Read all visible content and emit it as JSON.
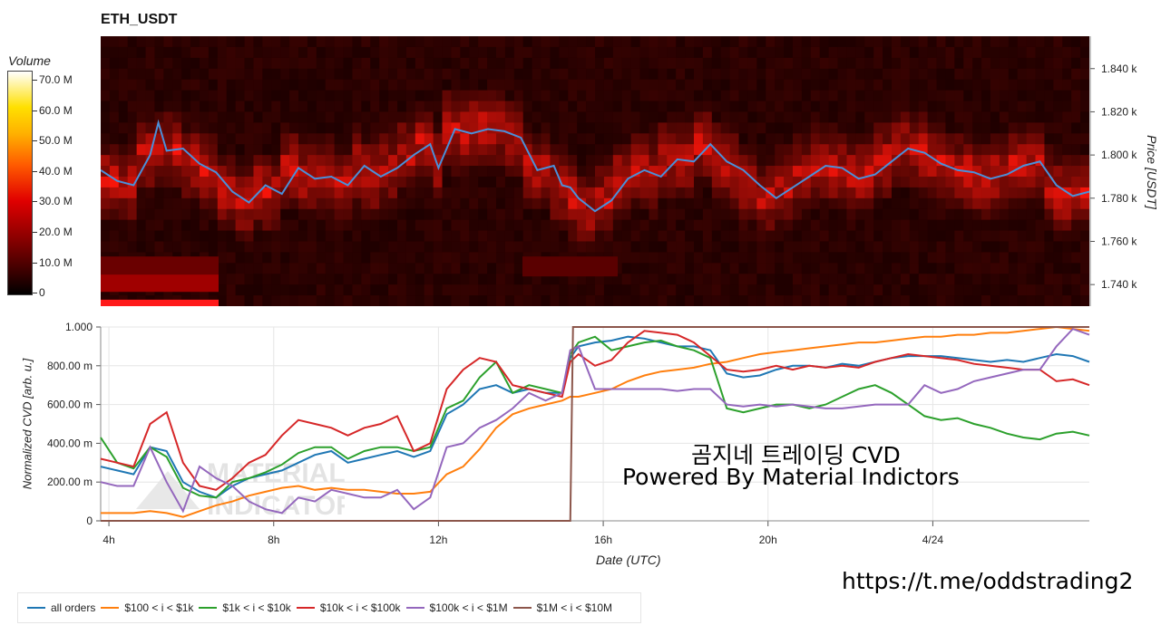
{
  "title": "ETH_USDT",
  "colorbar": {
    "title": "Volume",
    "labels": [
      "70.0 M",
      "60.0 M",
      "50.0 M",
      "40.0 M",
      "30.0 M",
      "20.0 M",
      "10.0 M",
      "0"
    ]
  },
  "overlay_text": {
    "line1": "곰지네 트레이딩 CVD",
    "line2": "Powered By Material Indictors"
  },
  "url": "https://t.me/oddstrading2",
  "watermark": {
    "line1": "MATERIAL",
    "line2": "INDICATORS"
  },
  "chart_data": [
    {
      "type": "heatmap",
      "title": "ETH_USDT",
      "ylabel": "Price [USDT]",
      "ylim": [
        1.73,
        1.855
      ],
      "yticks": [
        "1.740 k",
        "1.760 k",
        "1.780 k",
        "1.800 k",
        "1.820 k",
        "1.840 k"
      ],
      "ytick_values": [
        1.74,
        1.76,
        1.78,
        1.8,
        1.82,
        1.84
      ],
      "colorbar_label": "Volume",
      "colorbar_range": [
        0,
        75
      ],
      "price_series": {
        "name": "",
        "x": [
          3.8,
          4.2,
          4.6,
          5.0,
          5.2,
          5.4,
          5.8,
          6.2,
          6.6,
          7.0,
          7.4,
          7.8,
          8.2,
          8.6,
          9.0,
          9.4,
          9.8,
          10.2,
          10.6,
          11.0,
          11.4,
          11.8,
          12.0,
          12.4,
          12.8,
          13.2,
          13.6,
          14.0,
          14.4,
          14.8,
          15.0,
          15.2,
          15.4,
          15.8,
          16.2,
          16.6,
          17.0,
          17.4,
          17.8,
          18.2,
          18.6,
          19.0,
          19.4,
          19.8,
          20.2,
          20.6,
          21.0,
          21.4,
          21.8,
          22.2,
          22.6,
          23.0,
          23.4,
          23.8,
          24.2,
          24.6,
          25.0,
          25.4,
          25.8,
          26.2,
          26.6,
          27.0,
          27.4,
          27.8
        ],
        "y": [
          1.793,
          1.788,
          1.786,
          1.8,
          1.815,
          1.802,
          1.803,
          1.796,
          1.792,
          1.783,
          1.778,
          1.786,
          1.782,
          1.794,
          1.789,
          1.79,
          1.786,
          1.795,
          1.79,
          1.794,
          1.8,
          1.805,
          1.794,
          1.812,
          1.81,
          1.812,
          1.811,
          1.808,
          1.793,
          1.795,
          1.786,
          1.785,
          1.78,
          1.774,
          1.779,
          1.789,
          1.793,
          1.79,
          1.798,
          1.797,
          1.805,
          1.797,
          1.793,
          1.786,
          1.78,
          1.785,
          1.79,
          1.795,
          1.794,
          1.789,
          1.791,
          1.797,
          1.803,
          1.801,
          1.796,
          1.793,
          1.792,
          1.789,
          1.791,
          1.795,
          1.797,
          1.786,
          1.781,
          1.783
        ]
      }
    },
    {
      "type": "line",
      "xlabel": "Date (UTC)",
      "ylabel": "Normalized CVD [arb. u.]",
      "xlim": [
        3.8,
        27.8
      ],
      "ylim": [
        0,
        1.0
      ],
      "xticks": [
        "4h",
        "8h",
        "12h",
        "16h",
        "20h",
        "4/24"
      ],
      "xtick_values": [
        4,
        8,
        12,
        16,
        20,
        24
      ],
      "yticks": [
        "0",
        "200.00 m",
        "400.00 m",
        "600.00 m",
        "800.00 m",
        "1.000"
      ],
      "ytick_values": [
        0,
        0.2,
        0.4,
        0.6,
        0.8,
        1.0
      ],
      "x": [
        3.8,
        4.2,
        4.6,
        5.0,
        5.4,
        5.8,
        6.2,
        6.6,
        7.0,
        7.4,
        7.8,
        8.2,
        8.6,
        9.0,
        9.4,
        9.8,
        10.2,
        10.6,
        11.0,
        11.4,
        11.8,
        12.2,
        12.6,
        13.0,
        13.4,
        13.8,
        14.2,
        14.6,
        15.0,
        15.2,
        15.4,
        15.8,
        16.2,
        16.6,
        17.0,
        17.4,
        17.8,
        18.2,
        18.6,
        19.0,
        19.4,
        19.8,
        20.2,
        20.6,
        21.0,
        21.4,
        21.8,
        22.2,
        22.6,
        23.0,
        23.4,
        23.8,
        24.2,
        24.6,
        25.0,
        25.4,
        25.8,
        26.2,
        26.6,
        27.0,
        27.4,
        27.8
      ],
      "series": [
        {
          "name": "all orders",
          "color": "#1f77b4",
          "values": [
            0.28,
            0.26,
            0.24,
            0.38,
            0.36,
            0.2,
            0.15,
            0.12,
            0.18,
            0.22,
            0.24,
            0.26,
            0.3,
            0.34,
            0.36,
            0.3,
            0.32,
            0.34,
            0.36,
            0.33,
            0.36,
            0.55,
            0.6,
            0.68,
            0.7,
            0.66,
            0.68,
            0.66,
            0.66,
            0.84,
            0.9,
            0.92,
            0.93,
            0.95,
            0.94,
            0.92,
            0.9,
            0.9,
            0.88,
            0.76,
            0.74,
            0.75,
            0.78,
            0.8,
            0.8,
            0.79,
            0.81,
            0.8,
            0.82,
            0.84,
            0.85,
            0.85,
            0.85,
            0.84,
            0.83,
            0.82,
            0.83,
            0.82,
            0.84,
            0.86,
            0.85,
            0.82
          ]
        },
        {
          "name": "$100 < i < $1k",
          "color": "#ff7f0e",
          "values": [
            0.04,
            0.04,
            0.04,
            0.05,
            0.04,
            0.02,
            0.05,
            0.08,
            0.1,
            0.13,
            0.15,
            0.17,
            0.18,
            0.16,
            0.17,
            0.16,
            0.16,
            0.15,
            0.14,
            0.14,
            0.15,
            0.24,
            0.28,
            0.37,
            0.48,
            0.55,
            0.58,
            0.6,
            0.62,
            0.64,
            0.64,
            0.66,
            0.68,
            0.72,
            0.75,
            0.77,
            0.78,
            0.79,
            0.81,
            0.82,
            0.84,
            0.86,
            0.87,
            0.88,
            0.89,
            0.9,
            0.91,
            0.92,
            0.92,
            0.93,
            0.94,
            0.95,
            0.95,
            0.96,
            0.96,
            0.97,
            0.97,
            0.98,
            0.99,
            1.0,
            0.99,
            0.98
          ]
        },
        {
          "name": "$1k < i < $10k",
          "color": "#2ca02c",
          "values": [
            0.43,
            0.3,
            0.27,
            0.38,
            0.33,
            0.17,
            0.13,
            0.12,
            0.2,
            0.22,
            0.25,
            0.29,
            0.35,
            0.38,
            0.38,
            0.32,
            0.36,
            0.38,
            0.38,
            0.36,
            0.38,
            0.58,
            0.62,
            0.74,
            0.82,
            0.66,
            0.7,
            0.68,
            0.66,
            0.86,
            0.92,
            0.95,
            0.88,
            0.9,
            0.92,
            0.93,
            0.9,
            0.88,
            0.84,
            0.58,
            0.56,
            0.58,
            0.6,
            0.6,
            0.58,
            0.6,
            0.64,
            0.68,
            0.7,
            0.66,
            0.6,
            0.54,
            0.52,
            0.53,
            0.5,
            0.48,
            0.45,
            0.43,
            0.42,
            0.45,
            0.46,
            0.44
          ]
        },
        {
          "name": "$10k < i < $100k",
          "color": "#d62728",
          "values": [
            0.32,
            0.3,
            0.28,
            0.5,
            0.56,
            0.3,
            0.18,
            0.16,
            0.22,
            0.3,
            0.34,
            0.44,
            0.52,
            0.5,
            0.48,
            0.44,
            0.48,
            0.5,
            0.54,
            0.36,
            0.4,
            0.68,
            0.78,
            0.84,
            0.82,
            0.7,
            0.68,
            0.66,
            0.64,
            0.82,
            0.86,
            0.8,
            0.83,
            0.92,
            0.98,
            0.97,
            0.96,
            0.92,
            0.85,
            0.78,
            0.77,
            0.78,
            0.8,
            0.78,
            0.8,
            0.79,
            0.8,
            0.79,
            0.82,
            0.84,
            0.86,
            0.85,
            0.84,
            0.83,
            0.81,
            0.8,
            0.79,
            0.78,
            0.78,
            0.72,
            0.73,
            0.7
          ]
        },
        {
          "name": "$100k < i < $1M",
          "color": "#9467bd",
          "values": [
            0.2,
            0.18,
            0.18,
            0.38,
            0.2,
            0.05,
            0.28,
            0.22,
            0.18,
            0.1,
            0.06,
            0.04,
            0.12,
            0.1,
            0.16,
            0.14,
            0.12,
            0.12,
            0.16,
            0.06,
            0.12,
            0.38,
            0.4,
            0.48,
            0.52,
            0.58,
            0.66,
            0.62,
            0.66,
            0.88,
            0.9,
            0.68,
            0.68,
            0.68,
            0.68,
            0.68,
            0.67,
            0.68,
            0.68,
            0.6,
            0.59,
            0.6,
            0.59,
            0.6,
            0.59,
            0.58,
            0.58,
            0.59,
            0.6,
            0.6,
            0.6,
            0.7,
            0.66,
            0.68,
            0.72,
            0.74,
            0.76,
            0.78,
            0.78,
            0.9,
            0.99,
            0.96
          ]
        },
        {
          "name": "$1M < i < $10M",
          "color": "#8c564b",
          "values": [
            0,
            0,
            0,
            0,
            0,
            0,
            0,
            0,
            0,
            0,
            0,
            0,
            0,
            0,
            0,
            0,
            0,
            0,
            0,
            0,
            0,
            0,
            0,
            0,
            0,
            0,
            0,
            0,
            0,
            1.0,
            1.0,
            1.0,
            1.0,
            1.0,
            1.0,
            1.0,
            1.0,
            1.0,
            1.0,
            1.0,
            1.0,
            1.0,
            1.0,
            1.0,
            1.0,
            1.0,
            1.0,
            1.0,
            1.0,
            1.0,
            1.0,
            1.0,
            1.0,
            1.0,
            1.0,
            1.0,
            1.0,
            1.0,
            1.0,
            1.0,
            1.0,
            1.0
          ]
        }
      ]
    }
  ]
}
